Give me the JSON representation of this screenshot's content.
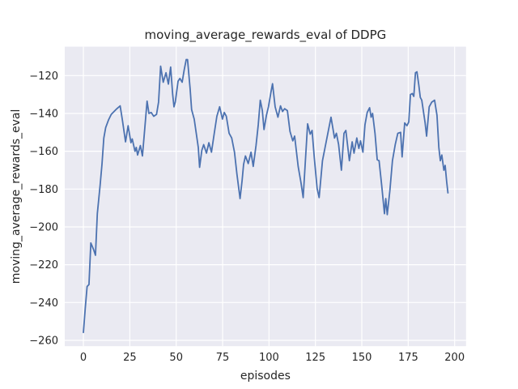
{
  "chart_data": {
    "type": "line",
    "title": "moving_average_rewards_eval of DDPG",
    "xlabel": "episodes",
    "ylabel": "moving_average_rewards_eval",
    "xlim": [
      -10.05,
      206.15
    ],
    "ylim": [
      -263.1,
      -104.7
    ],
    "grid": true,
    "legend_position": "none",
    "plot_bg_color": "#eaeaf2",
    "grid_color": "#ffffff",
    "text_color": "#262626",
    "x_ticks": [
      0,
      25,
      50,
      75,
      100,
      125,
      150,
      175,
      200
    ],
    "x_tick_labels": [
      "0",
      "25",
      "50",
      "75",
      "100",
      "125",
      "150",
      "175",
      "200"
    ],
    "y_ticks": [
      -260,
      -240,
      -220,
      -200,
      -180,
      -160,
      -140,
      -120
    ],
    "y_tick_labels": [
      "−260",
      "−240",
      "−220",
      "−200",
      "−180",
      "−160",
      "−140",
      "−120"
    ],
    "series": [
      {
        "name": "moving_average_rewards_eval",
        "color": "#4c72b0",
        "x": [
          0,
          1,
          2,
          3,
          4,
          5.5,
          6.5,
          7.5,
          9,
          10,
          11,
          12,
          13.5,
          15,
          16.5,
          18,
          19.8,
          21,
          22.7,
          24.1,
          25.6,
          26.3,
          27.8,
          28.5,
          29.2,
          30.7,
          31.8,
          32.8,
          34.3,
          35.3,
          36.5,
          37.9,
          39.4,
          40.5,
          41.6,
          43,
          44.5,
          45.8,
          47,
          48.1,
          48.8,
          49.5,
          51,
          52,
          53.2,
          54.3,
          55.4,
          56.1,
          57.5,
          58.3,
          59.7,
          60.8,
          61.9,
          62.6,
          63.8,
          64.8,
          66.3,
          67.6,
          69,
          70.5,
          71.9,
          73.4,
          74.9,
          75.9,
          77,
          78.5,
          79.9,
          81.4,
          82.7,
          84.4,
          85.5,
          86.3,
          87.3,
          88.8,
          90.3,
          91.5,
          93,
          94.2,
          95.3,
          96.4,
          97.3,
          98.6,
          99.7,
          101,
          101.9,
          103.3,
          104.8,
          106.2,
          107.3,
          108.4,
          109.9,
          111.3,
          112.8,
          113.8,
          115.7,
          117.2,
          118.4,
          119.6,
          120.8,
          122.2,
          123.2,
          124.4,
          125.9,
          127,
          128.8,
          130.2,
          131.7,
          133.4,
          135.3,
          136.3,
          137.5,
          139,
          140.4,
          141.4,
          143.3,
          144.8,
          145.8,
          147.3,
          148.4,
          149.3,
          150.6,
          151.7,
          152.9,
          154.2,
          155,
          155.8,
          157.1,
          158.3,
          159.3,
          160.7,
          162.2,
          162.9,
          163.7,
          165.1,
          166.5,
          168,
          169.4,
          170.9,
          171.7,
          173.1,
          174.3,
          175.3,
          176.2,
          177.2,
          178,
          178.9,
          179.7,
          180.7,
          181.5,
          182.3,
          184.1,
          184.9,
          186.3,
          187.7,
          189.2,
          190.5,
          191.5,
          192.3,
          193.1,
          194.2,
          194.9,
          195.7,
          196.4
        ],
        "y": [
          -255.8,
          -243,
          -231.5,
          -230.5,
          -208.5,
          -212,
          -215,
          -193,
          -178,
          -167,
          -153,
          -147.5,
          -143.5,
          -140.5,
          -139,
          -137.5,
          -136,
          -143.5,
          -155,
          -146.5,
          -155.5,
          -153.5,
          -160,
          -158,
          -162,
          -157,
          -162.5,
          -151,
          -133.5,
          -140,
          -139.5,
          -141.5,
          -140.5,
          -134,
          -115,
          -123.5,
          -118.5,
          -124.5,
          -115.5,
          -130,
          -136.5,
          -134,
          -123,
          -121.5,
          -123.5,
          -117,
          -111.5,
          -111.5,
          -127,
          -138,
          -143,
          -150.5,
          -158,
          -168.5,
          -159.5,
          -156.5,
          -161,
          -155.5,
          -160.5,
          -150.5,
          -141.5,
          -136.5,
          -143,
          -139.5,
          -141.5,
          -150.5,
          -153,
          -160.5,
          -172,
          -185,
          -175.5,
          -167,
          -162.5,
          -166.5,
          -160.5,
          -168,
          -157,
          -146,
          -133,
          -138.5,
          -148.5,
          -141,
          -136.5,
          -129,
          -124.3,
          -136.5,
          -142,
          -136,
          -139,
          -137.5,
          -138.5,
          -149.5,
          -154.5,
          -152,
          -168,
          -176.5,
          -184.5,
          -165,
          -145.5,
          -151,
          -149,
          -163.5,
          -179.5,
          -184.5,
          -165,
          -158,
          -150.5,
          -142,
          -153,
          -150.5,
          -156.5,
          -170,
          -150.5,
          -149,
          -165,
          -155,
          -161,
          -153,
          -158.5,
          -154.5,
          -160.5,
          -146,
          -139.5,
          -137,
          -142,
          -140,
          -150.5,
          -164.5,
          -165,
          -178,
          -193,
          -185,
          -193.5,
          -181,
          -165,
          -156.5,
          -150.5,
          -150,
          -163,
          -145,
          -146.5,
          -144.5,
          -130,
          -129.5,
          -131,
          -118.5,
          -118,
          -125,
          -131.5,
          -133,
          -145,
          -152,
          -136.5,
          -134,
          -133,
          -141,
          -158,
          -165,
          -162,
          -170,
          -167.5,
          -176,
          -182
        ]
      }
    ]
  }
}
